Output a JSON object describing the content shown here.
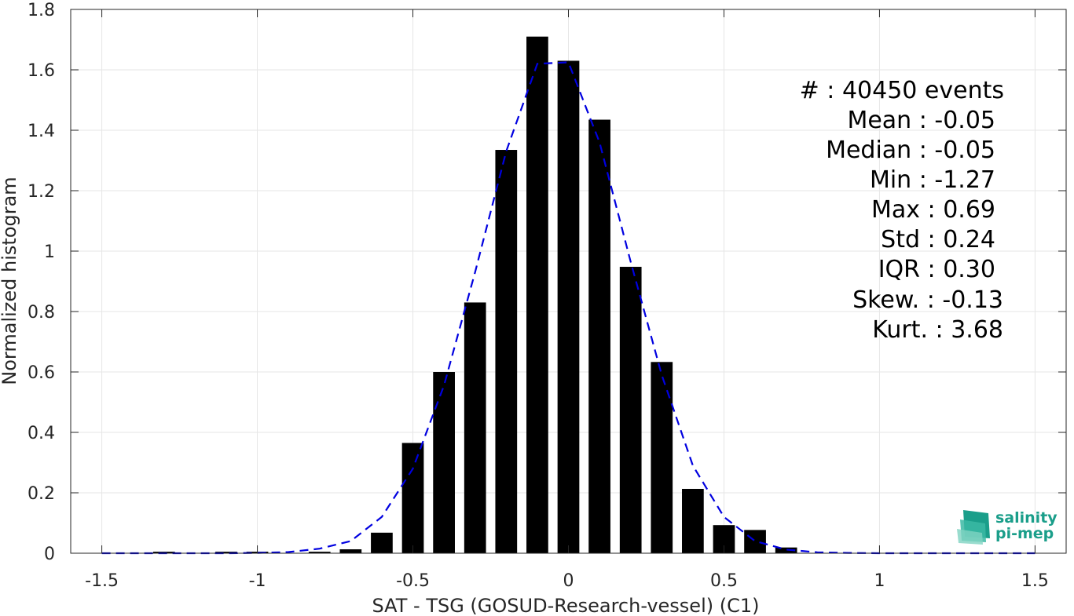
{
  "chart_data": {
    "type": "bar",
    "xlabel": "SAT - TSG (GOSUD-Research-vessel) (C1)",
    "ylabel": "Normalized histogram",
    "xlim": [
      -1.6,
      1.6
    ],
    "ylim": [
      0,
      1.8
    ],
    "xticks": [
      -1.5,
      -1,
      -0.5,
      0,
      0.5,
      1,
      1.5
    ],
    "xtick_labels": [
      "-1.5",
      "-1",
      "-0.5",
      "0",
      "0.5",
      "1",
      "1.5"
    ],
    "yticks": [
      0,
      0.2,
      0.4,
      0.6,
      0.8,
      1,
      1.2,
      1.4,
      1.6,
      1.8
    ],
    "ytick_labels": [
      "0",
      "0.2",
      "0.4",
      "0.6",
      "0.8",
      "1",
      "1.2",
      "1.4",
      "1.6",
      "1.8"
    ],
    "grid": true,
    "bar_color": "#000000",
    "bar_width": 0.07,
    "bars": {
      "x": [
        -1.3,
        -1.1,
        -1.0,
        -0.8,
        -0.7,
        -0.6,
        -0.5,
        -0.4,
        -0.3,
        -0.2,
        -0.1,
        0.0,
        0.1,
        0.2,
        0.3,
        0.4,
        0.5,
        0.6,
        0.7
      ],
      "values": [
        0.005,
        0.005,
        0.005,
        0.005,
        0.013,
        0.068,
        0.365,
        0.6,
        0.83,
        1.335,
        1.71,
        1.63,
        1.435,
        0.948,
        0.633,
        0.213,
        0.093,
        0.077,
        0.019
      ]
    },
    "fit_line": {
      "style": "dashed",
      "color": "#0000e0",
      "x": [
        -1.5,
        -1.4,
        -1.3,
        -1.2,
        -1.1,
        -1.0,
        -0.9,
        -0.8,
        -0.7,
        -0.6,
        -0.5,
        -0.4,
        -0.3,
        -0.2,
        -0.1,
        0.0,
        0.1,
        0.2,
        0.3,
        0.4,
        0.5,
        0.6,
        0.7,
        0.8,
        0.9,
        1.0,
        1.1,
        1.2,
        1.3,
        1.4,
        1.5
      ],
      "y": [
        0,
        0,
        0,
        0,
        0,
        0.001,
        0.004,
        0.015,
        0.04,
        0.12,
        0.28,
        0.555,
        0.93,
        1.33,
        1.62,
        1.625,
        1.36,
        0.965,
        0.59,
        0.29,
        0.12,
        0.04,
        0.012,
        0.003,
        0.001,
        0,
        0,
        0,
        0,
        0,
        0
      ]
    },
    "stats": [
      "#  : 40450 events",
      "Mean : -0.05",
      "Median : -0.05",
      "Min : -1.27",
      "Max : 0.69",
      "Std : 0.24",
      "IQR : 0.30",
      "Skew. : -0.13",
      "Kurt. : 3.68"
    ]
  },
  "logo": {
    "line1": "salinity",
    "line2": "pi-mep",
    "color": "#1a9e8a"
  }
}
